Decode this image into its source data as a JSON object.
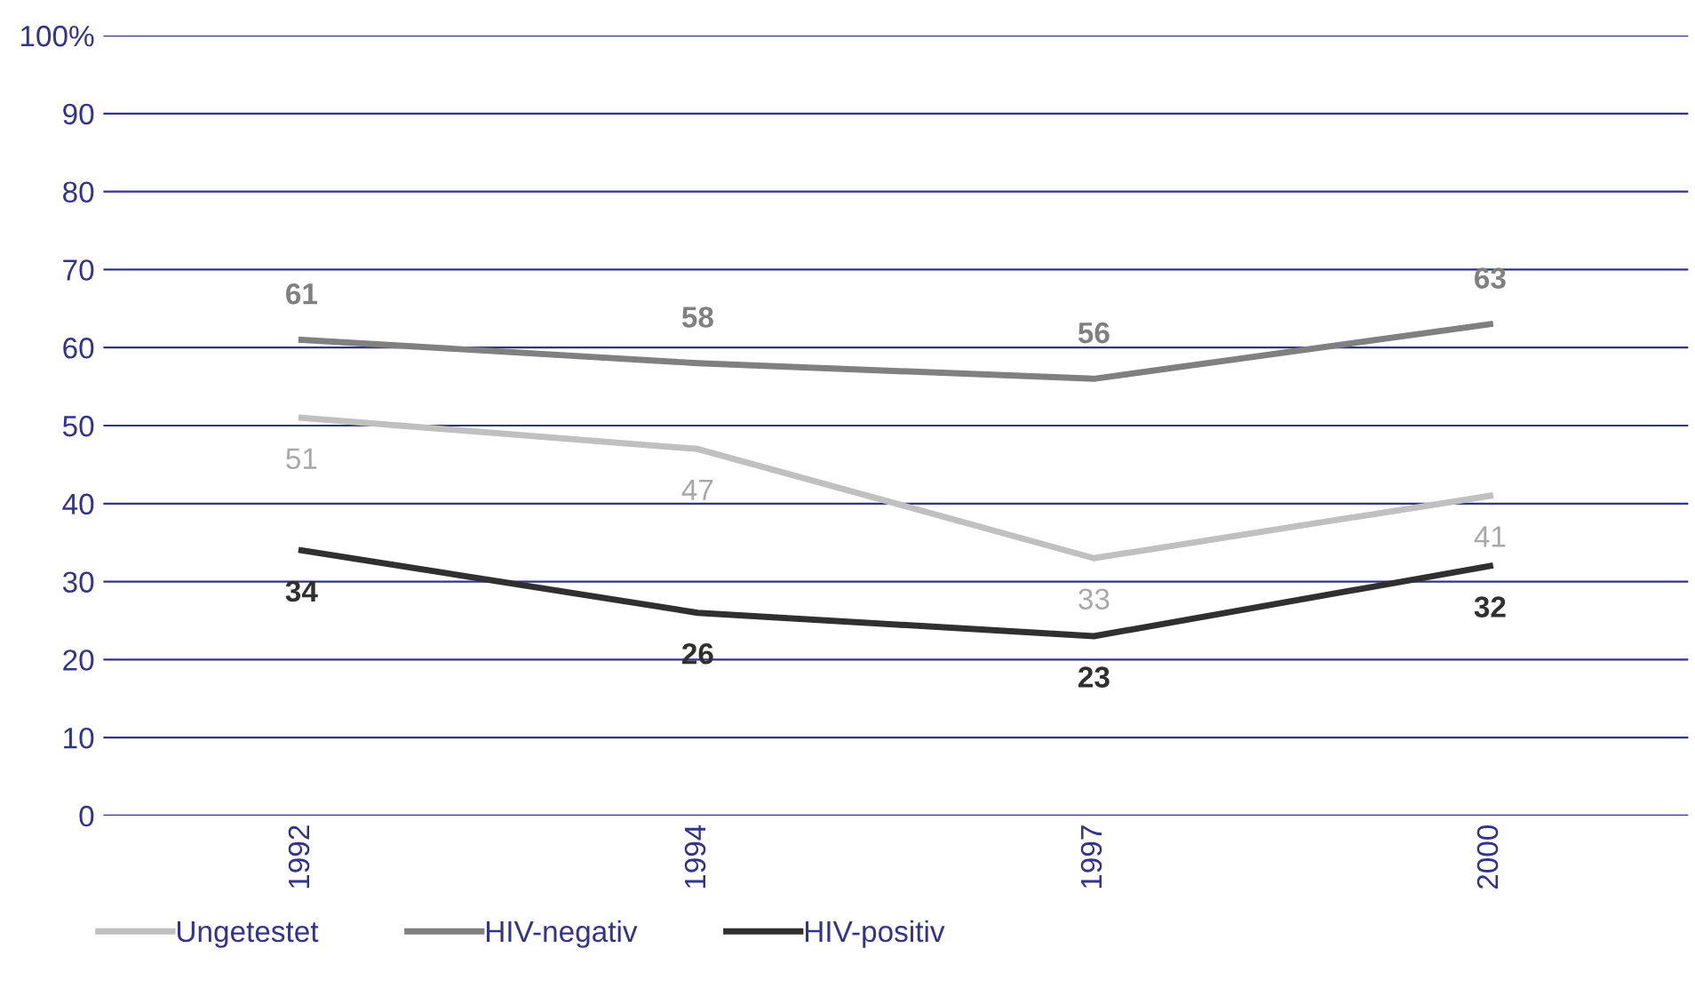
{
  "chart_data": {
    "type": "line",
    "categories": [
      "1992",
      "1994",
      "1997",
      "2000"
    ],
    "series": [
      {
        "name": "Ungetestet",
        "color": "#c0c0c0",
        "values": [
          51,
          47,
          33,
          41
        ]
      },
      {
        "name": "HIV-negativ",
        "color": "#808080",
        "values": [
          61,
          58,
          56,
          63
        ]
      },
      {
        "name": "HIV-positiv",
        "color": "#303030",
        "values": [
          34,
          26,
          23,
          32
        ]
      }
    ],
    "ylim": [
      0,
      100
    ],
    "yticks": [
      0,
      10,
      20,
      30,
      40,
      50,
      60,
      70,
      80,
      90,
      {
        "value": 100,
        "label": "100%"
      }
    ],
    "grid": "y",
    "legend": "bottom",
    "data_labels": true,
    "marker": "none",
    "line_style": "solid"
  }
}
